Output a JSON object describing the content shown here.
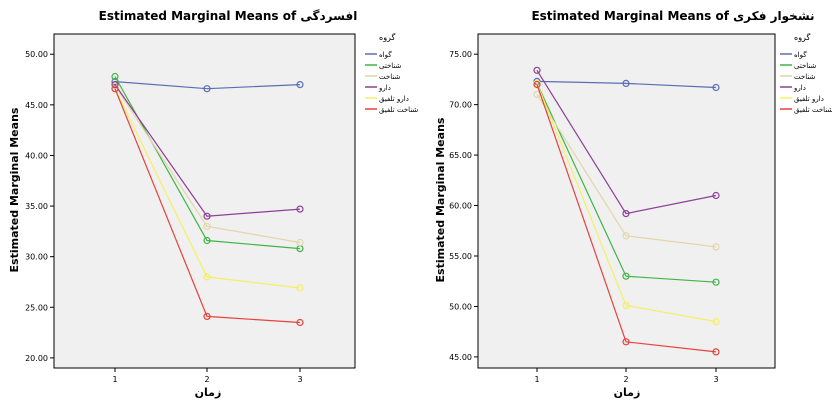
{
  "chart_data": [
    {
      "type": "line",
      "title": "Estimated Marginal Means of افسردگی",
      "xlabel": "زمان",
      "ylabel": "Estimated Marginal Means",
      "x": [
        "1",
        "2",
        "3"
      ],
      "ylim": [
        19.0,
        52.0
      ],
      "yticks": [
        "20.00",
        "25.00",
        "30.00",
        "35.00",
        "40.00",
        "45.00",
        "50.00"
      ],
      "legend_title": "گروه",
      "legend_position": "top-right",
      "grid": false,
      "series": [
        {
          "name": "گواه",
          "color": "#5a6eb4",
          "values": [
            47.3,
            46.6,
            47.0
          ]
        },
        {
          "name": "شناختی",
          "color": "#3fb545",
          "values": [
            47.8,
            31.6,
            30.8
          ]
        },
        {
          "name": "شناخت",
          "color": "#e3d6aa",
          "values": [
            46.9,
            33.0,
            31.4
          ]
        },
        {
          "name": "دارو",
          "color": "#8c3f98",
          "values": [
            47.0,
            34.0,
            34.7
          ]
        },
        {
          "name": "دارو تلفیق",
          "color": "#f5f061",
          "values": [
            46.6,
            28.0,
            26.9
          ]
        },
        {
          "name": "شناخت تلفیق",
          "color": "#e8413c",
          "values": [
            46.6,
            24.1,
            23.5
          ]
        }
      ]
    },
    {
      "type": "line",
      "title": "Estimated Marginal Means of نشخوار فکری",
      "xlabel": "زمان",
      "ylabel": "Estimated Marginal Means",
      "x": [
        "1",
        "2",
        "3"
      ],
      "ylim": [
        43.9,
        77.0
      ],
      "yticks": [
        "45.00",
        "50.00",
        "55.00",
        "60.00",
        "65.00",
        "70.00",
        "75.00"
      ],
      "legend_title": "گروه",
      "legend_position": "top-right",
      "grid": false,
      "series": [
        {
          "name": "گواه",
          "color": "#5a6eb4",
          "values": [
            72.3,
            72.1,
            71.7
          ]
        },
        {
          "name": "شناختی",
          "color": "#3fb545",
          "values": [
            72.1,
            53.0,
            52.4
          ]
        },
        {
          "name": "شناخت",
          "color": "#e3d6aa",
          "values": [
            71.0,
            57.0,
            55.9
          ]
        },
        {
          "name": "دارو",
          "color": "#8c3f98",
          "values": [
            73.4,
            59.2,
            61.0
          ]
        },
        {
          "name": "دارو تلفیق",
          "color": "#f5f061",
          "values": [
            72.1,
            50.1,
            48.5
          ]
        },
        {
          "name": "شناخت تلفیق",
          "color": "#e8413c",
          "values": [
            72.0,
            46.5,
            45.5
          ]
        }
      ]
    }
  ]
}
